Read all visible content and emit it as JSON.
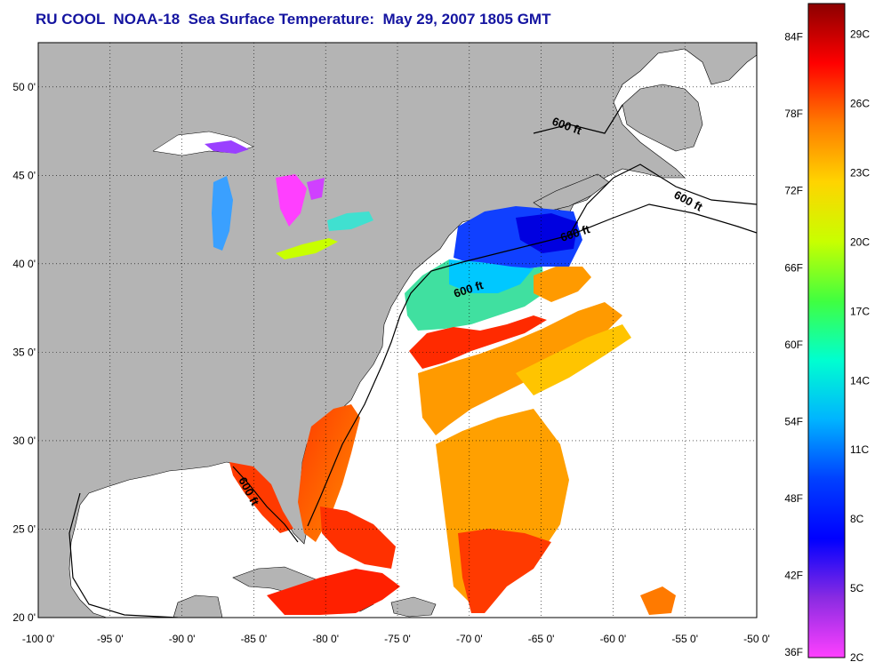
{
  "title": "RU COOL  NOAA-18  Sea Surface Temperature:  May 29, 2007 1805 GMT",
  "map": {
    "lon_range": [
      -100,
      -50
    ],
    "lat_range": [
      20,
      52.5
    ],
    "lon_ticks": [
      -100,
      -95,
      -90,
      -85,
      -80,
      -75,
      -70,
      -65,
      -60,
      -55,
      -50
    ],
    "lon_tick_labels": [
      "-100 0'",
      "-95 0'",
      "-90 0'",
      "-85 0'",
      "-80 0'",
      "-75 0'",
      "-70 0'",
      "-65 0'",
      "-60 0'",
      "-55 0'",
      "-50 0'"
    ],
    "lat_ticks": [
      20,
      25,
      30,
      35,
      40,
      45,
      50
    ],
    "lat_tick_labels": [
      "20 0'",
      "25 0'",
      "30 0'",
      "35 0'",
      "40 0'",
      "45 0'",
      "50 0'"
    ],
    "grid": "dotted",
    "land_color": "#b4b4b4",
    "ocean_no_data_color": "#ffffff",
    "contour_label": "600 ft",
    "contour_label_count": 5
  },
  "colorbar": {
    "fahrenheit_labels": [
      "84F",
      "78F",
      "72F",
      "66F",
      "60F",
      "54F",
      "48F",
      "42F",
      "36F"
    ],
    "celsius_labels": [
      "29C",
      "26C",
      "23C",
      "20C",
      "17C",
      "14C",
      "11C",
      "8C",
      "5C",
      "2C"
    ],
    "colors_top_to_bottom": [
      "#8b0000",
      "#ff0000",
      "#ff7a00",
      "#ffd400",
      "#c8ff00",
      "#40ff40",
      "#00ffd0",
      "#00b4ff",
      "#0040ff",
      "#0000ff",
      "#8a2be2",
      "#ff40ff"
    ]
  }
}
